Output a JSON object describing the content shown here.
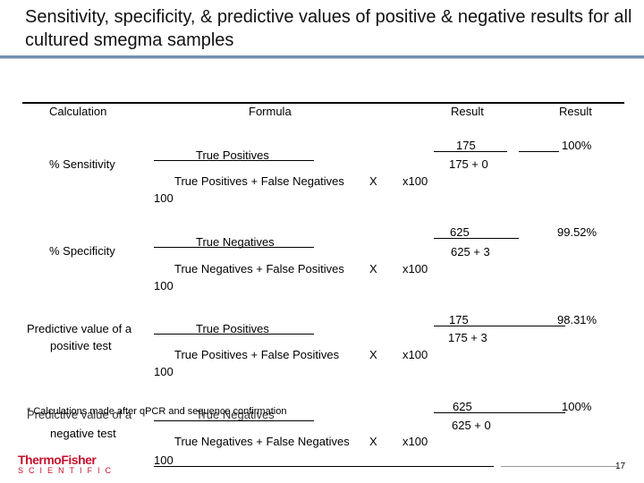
{
  "title": "Sensitivity, specificity, & predictive values of positive & negative results for all cultured smegma samples",
  "headers": {
    "calculation": "Calculation",
    "formula": "Formula",
    "result1": "Result",
    "result2": "Result"
  },
  "rows": [
    {
      "label": "% Sensitivity",
      "numerator": "True Positives",
      "denominator": "True Positives + False Negatives",
      "times": "X",
      "x100": "x100",
      "hundred": "100",
      "frac_num": "175",
      "frac_den": "175 + 0",
      "result": "100%"
    },
    {
      "label": "% Specificity",
      "numerator": "True Negatives",
      "denominator": "True Negatives + False Positives",
      "times": "X",
      "x100": "x100",
      "hundred": "100",
      "frac_num": "625",
      "frac_den": "625 + 3",
      "result": "99.52%"
    },
    {
      "label_line1": "Predictive value of a",
      "label_line2": "positive test",
      "numerator": "True Positives",
      "denominator": "True Positives + False Positives",
      "times": "X",
      "x100": "x100",
      "hundred": "100",
      "frac_num": "175",
      "frac_den": "175 + 3",
      "result": "98.31%"
    },
    {
      "label_line1": "Predictive value of a",
      "label_line2": "negative test",
      "numerator": "True Negatives",
      "denominator": "True Negatives + False Negatives",
      "times": "X",
      "x100": "x100",
      "hundred": "100",
      "frac_num": "625",
      "frac_den": "625 + 0",
      "result": "100%"
    }
  ],
  "footnote": "* Calculations made after qPCR and sequence confirmation",
  "logo": {
    "brand": "ThermoFisher",
    "sub": "SCIENTIFIC"
  },
  "slide_number": "17",
  "colors": {
    "accent_bar": "#6f8fb5",
    "logo_red": "#c8102e"
  }
}
